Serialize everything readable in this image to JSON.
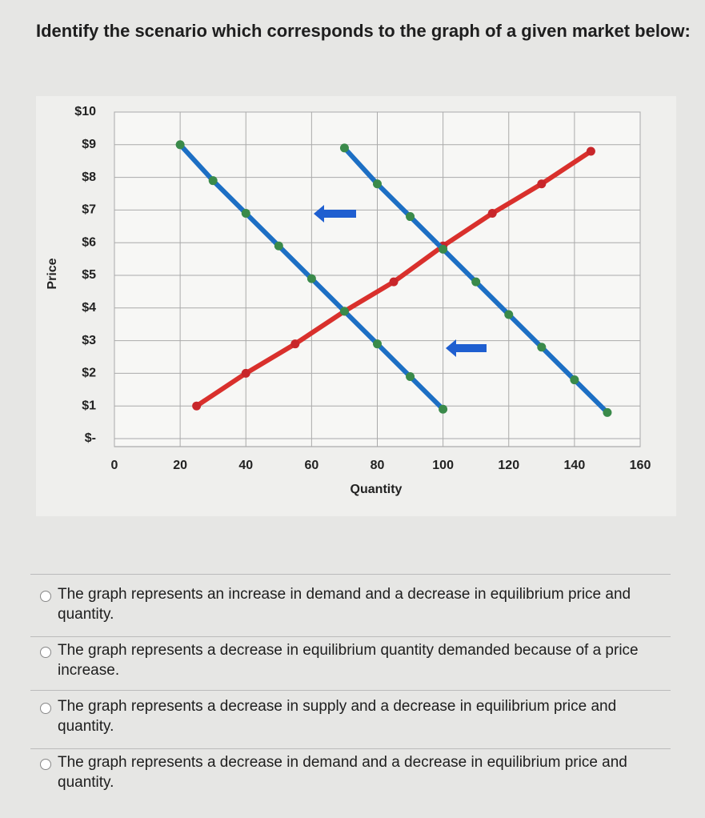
{
  "question": "Identify the scenario which corresponds to the graph of a given market below:",
  "chart_data": {
    "type": "line",
    "x_label": "Quantity",
    "y_label": "Price",
    "xlim": [
      0,
      160
    ],
    "xticks": [
      0,
      20,
      40,
      60,
      80,
      100,
      120,
      140,
      160
    ],
    "ylim": [
      0,
      10
    ],
    "yticks": [
      {
        "value": 0,
        "label": "$-"
      },
      {
        "value": 1,
        "label": "$1"
      },
      {
        "value": 2,
        "label": "$2"
      },
      {
        "value": 3,
        "label": "$3"
      },
      {
        "value": 4,
        "label": "$4"
      },
      {
        "value": 5,
        "label": "$5"
      },
      {
        "value": 6,
        "label": "$6"
      },
      {
        "value": 7,
        "label": "$7"
      },
      {
        "value": 8,
        "label": "$8"
      },
      {
        "value": 9,
        "label": "$9"
      },
      {
        "value": 10,
        "label": "$10"
      }
    ],
    "grid": true,
    "series": [
      {
        "color": "#d9302c",
        "marker_color": "#c8262a",
        "x": [
          25,
          40,
          55,
          70,
          85,
          100,
          115,
          130,
          145
        ],
        "values": [
          1,
          2,
          2.9,
          3.9,
          4.8,
          5.9,
          6.9,
          7.8,
          8.8
        ]
      },
      {
        "color": "#1d6fc4",
        "marker_color": "#3a8a4a",
        "x": [
          70,
          80,
          90,
          100,
          110,
          120,
          130,
          140,
          150
        ],
        "values": [
          8.9,
          7.8,
          6.8,
          5.8,
          4.8,
          3.8,
          2.8,
          1.8,
          0.8
        ]
      },
      {
        "color": "#1d6fc4",
        "marker_color": "#3a8a4a",
        "x": [
          20,
          30,
          40,
          50,
          60,
          70,
          80,
          90,
          100
        ],
        "values": [
          9,
          7.9,
          6.9,
          5.9,
          4.9,
          3.9,
          2.9,
          1.9,
          0.9
        ]
      }
    ]
  },
  "options": [
    "The graph represents an increase in demand and a decrease in equilibrium price and quantity.",
    "The graph represents a decrease in equilibrium quantity demanded because of a price increase.",
    "The graph represents a decrease in supply and a decrease in equilibrium price and quantity.",
    "The graph represents a decrease in demand and a decrease in equilibrium price and quantity."
  ]
}
